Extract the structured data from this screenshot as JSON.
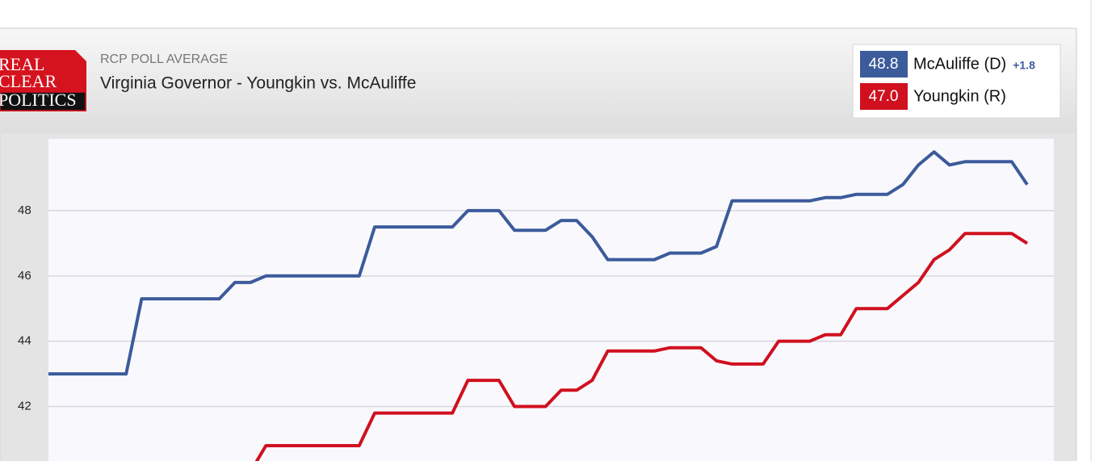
{
  "chart_data": {
    "type": "line",
    "eyebrow": "RCP POLL AVERAGE",
    "title": "Virginia Governor - Youngkin vs. McAuliffe",
    "logo": [
      "REAL",
      "CLEAR",
      "POLITICS"
    ],
    "spread_label": "+1.8",
    "ylim": [
      40.33,
      50.2
    ],
    "yticks": [
      42,
      44,
      46,
      48
    ],
    "grid": true,
    "series": [
      {
        "name": "McAuliffe (D)",
        "color": "#3c5b9b",
        "latest_label": "48.8",
        "values": [
          43.0,
          43.0,
          43.0,
          43.0,
          43.0,
          43.0,
          45.3,
          45.3,
          45.3,
          45.3,
          45.3,
          45.3,
          45.8,
          45.8,
          46.0,
          46.0,
          46.0,
          46.0,
          46.0,
          46.0,
          46.0,
          47.5,
          47.5,
          47.5,
          47.5,
          47.5,
          47.5,
          48.0,
          48.0,
          48.0,
          47.4,
          47.4,
          47.4,
          47.7,
          47.7,
          47.2,
          46.5,
          46.5,
          46.5,
          46.5,
          46.7,
          46.7,
          46.7,
          46.9,
          48.3,
          48.3,
          48.3,
          48.3,
          48.3,
          48.3,
          48.4,
          48.4,
          48.5,
          48.5,
          48.5,
          48.8,
          49.4,
          49.8,
          49.4,
          49.5,
          49.5,
          49.5,
          49.5,
          48.8
        ]
      },
      {
        "name": "Youngkin (R)",
        "color": "#d0101f",
        "latest_label": "47.0",
        "values": [
          null,
          null,
          null,
          null,
          null,
          null,
          null,
          null,
          null,
          null,
          null,
          null,
          null,
          40.0,
          40.8,
          40.8,
          40.8,
          40.8,
          40.8,
          40.8,
          40.8,
          41.8,
          41.8,
          41.8,
          41.8,
          41.8,
          41.8,
          42.8,
          42.8,
          42.8,
          42.0,
          42.0,
          42.0,
          42.5,
          42.5,
          42.8,
          43.7,
          43.7,
          43.7,
          43.7,
          43.8,
          43.8,
          43.8,
          43.4,
          43.3,
          43.3,
          43.3,
          44.0,
          44.0,
          44.0,
          44.2,
          44.2,
          45.0,
          45.0,
          45.0,
          45.4,
          45.8,
          46.5,
          46.8,
          47.3,
          47.3,
          47.3,
          47.3,
          47.0
        ]
      }
    ]
  }
}
